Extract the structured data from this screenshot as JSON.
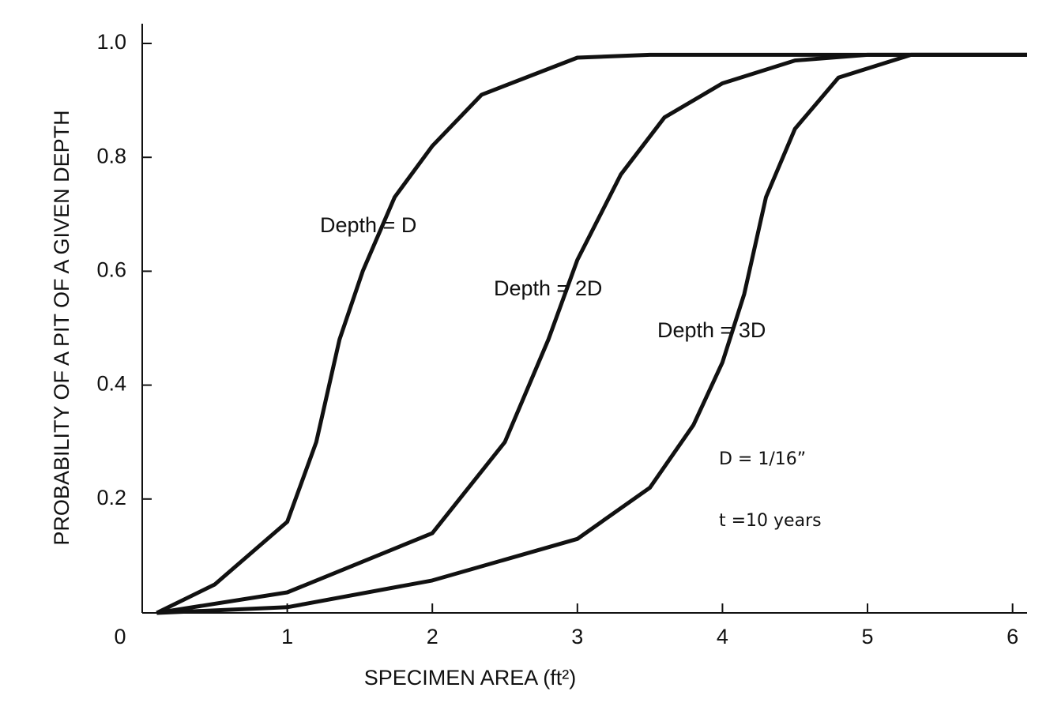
{
  "chart_data": {
    "type": "line",
    "xlabel": "SPECIMEN AREA  (ft²)",
    "ylabel": "PROBABILITY OF A PIT OF A GIVEN DEPTH",
    "series": [
      {
        "name": "Depth = D",
        "color": "#111111",
        "x": [
          0.1,
          0.5,
          1,
          1.2,
          1.36,
          1.52,
          1.74,
          2,
          2.34,
          3,
          3.5,
          6.1
        ],
        "values": [
          0,
          0.05,
          0.16,
          0.3,
          0.48,
          0.6,
          0.73,
          0.82,
          0.91,
          0.975,
          0.98,
          0.98
        ]
      },
      {
        "name": "Depth = 2D",
        "color": "#111111",
        "x": [
          0.1,
          1,
          2,
          2.5,
          2.8,
          3,
          3.3,
          3.6,
          4,
          4.5,
          5,
          6.1
        ],
        "values": [
          0,
          0.036,
          0.14,
          0.3,
          0.48,
          0.62,
          0.77,
          0.87,
          0.93,
          0.97,
          0.98,
          0.98
        ]
      },
      {
        "name": "Depth = 3D",
        "color": "#111111",
        "x": [
          0.1,
          1,
          2,
          3,
          3.5,
          3.8,
          4,
          4.15,
          4.3,
          4.5,
          4.8,
          5.3,
          6.1
        ],
        "values": [
          0,
          0.01,
          0.057,
          0.13,
          0.22,
          0.33,
          0.44,
          0.56,
          0.73,
          0.85,
          0.94,
          0.98,
          0.98
        ]
      }
    ],
    "xlim": [
      0,
      6.1
    ],
    "ylim": [
      0,
      1
    ],
    "xticks": [
      0,
      1,
      2,
      3,
      4,
      5,
      6
    ],
    "yticks": [
      0.2,
      0.4,
      0.6,
      0.8,
      {
        "value": 1,
        "label": "1.0"
      }
    ],
    "annotations": [
      "D = 1/16”",
      "t =10 years"
    ]
  }
}
